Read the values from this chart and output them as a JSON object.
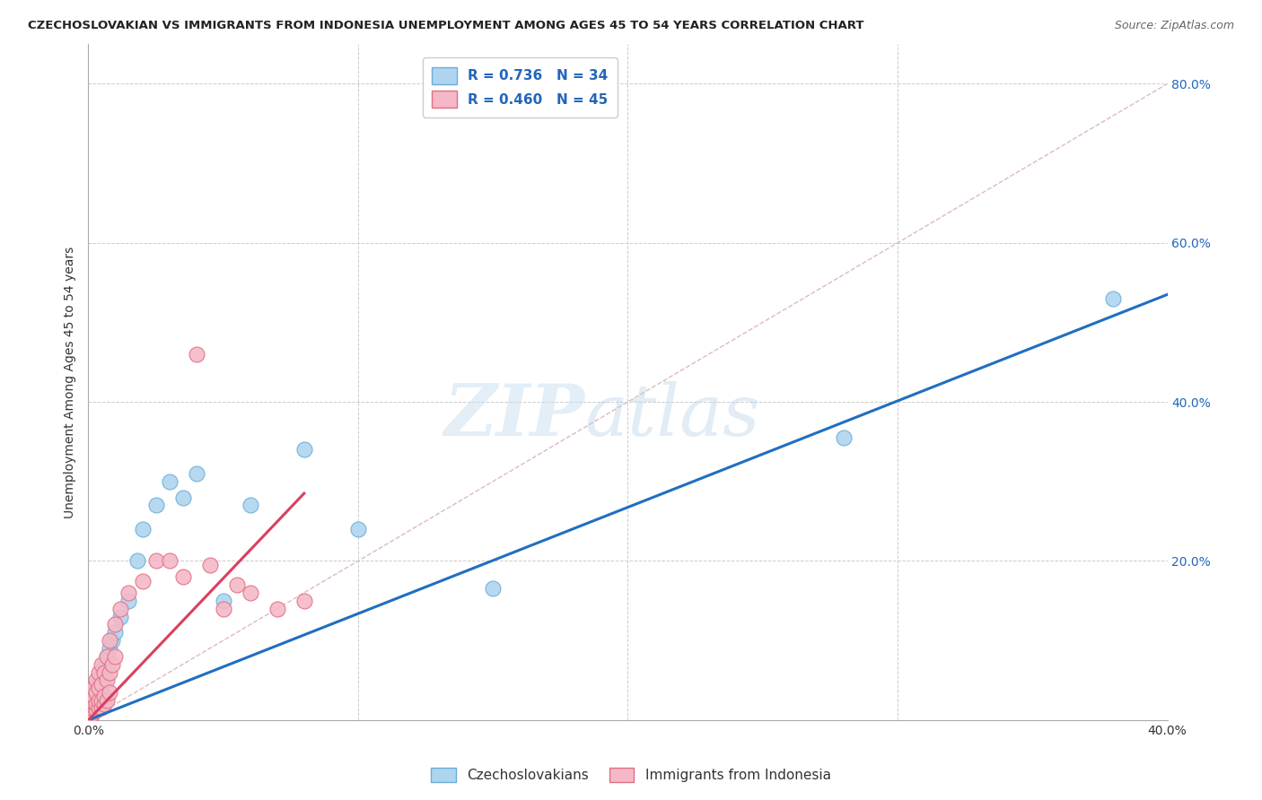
{
  "title": "CZECHOSLOVAKIAN VS IMMIGRANTS FROM INDONESIA UNEMPLOYMENT AMONG AGES 45 TO 54 YEARS CORRELATION CHART",
  "source": "Source: ZipAtlas.com",
  "ylabel": "Unemployment Among Ages 45 to 54 years",
  "xlim": [
    0,
    0.4
  ],
  "ylim": [
    0,
    0.85
  ],
  "xticks": [
    0.0,
    0.1,
    0.2,
    0.3,
    0.4
  ],
  "xticklabels": [
    "0.0%",
    "",
    "",
    "",
    "40.0%"
  ],
  "yticks_right": [
    0.2,
    0.4,
    0.6,
    0.8
  ],
  "yticklabels_right": [
    "20.0%",
    "40.0%",
    "60.0%",
    "80.0%"
  ],
  "series1_label": "Czechoslovakians",
  "series1_color": "#aed4f0",
  "series1_edge": "#6aaed6",
  "series1_R": 0.736,
  "series1_N": 34,
  "series1_line_color": "#1f6fbf",
  "series2_label": "Immigrants from Indonesia",
  "series2_color": "#f4b8c8",
  "series2_edge": "#e07080",
  "series2_R": 0.46,
  "series2_N": 45,
  "series2_line_color": "#d94060",
  "background_color": "#ffffff",
  "grid_color": "#cccccc",
  "watermark": "ZIPatlas",
  "czecho_x": [
    0.001,
    0.001,
    0.001,
    0.002,
    0.002,
    0.002,
    0.003,
    0.003,
    0.003,
    0.004,
    0.004,
    0.005,
    0.005,
    0.006,
    0.006,
    0.007,
    0.008,
    0.009,
    0.01,
    0.012,
    0.015,
    0.018,
    0.02,
    0.025,
    0.03,
    0.035,
    0.04,
    0.05,
    0.06,
    0.08,
    0.1,
    0.15,
    0.28,
    0.38
  ],
  "czecho_y": [
    0.005,
    0.008,
    0.01,
    0.015,
    0.02,
    0.025,
    0.03,
    0.035,
    0.04,
    0.045,
    0.05,
    0.055,
    0.06,
    0.05,
    0.07,
    0.08,
    0.09,
    0.1,
    0.11,
    0.13,
    0.15,
    0.2,
    0.24,
    0.27,
    0.3,
    0.28,
    0.31,
    0.15,
    0.27,
    0.34,
    0.24,
    0.165,
    0.355,
    0.53
  ],
  "indo_x": [
    0.001,
    0.001,
    0.001,
    0.001,
    0.002,
    0.002,
    0.002,
    0.002,
    0.003,
    0.003,
    0.003,
    0.003,
    0.004,
    0.004,
    0.004,
    0.004,
    0.005,
    0.005,
    0.005,
    0.005,
    0.006,
    0.006,
    0.006,
    0.007,
    0.007,
    0.007,
    0.008,
    0.008,
    0.008,
    0.009,
    0.01,
    0.01,
    0.012,
    0.015,
    0.02,
    0.025,
    0.03,
    0.035,
    0.04,
    0.045,
    0.05,
    0.055,
    0.06,
    0.07,
    0.08
  ],
  "indo_y": [
    0.003,
    0.006,
    0.01,
    0.015,
    0.018,
    0.022,
    0.03,
    0.04,
    0.012,
    0.02,
    0.035,
    0.05,
    0.015,
    0.025,
    0.04,
    0.06,
    0.015,
    0.025,
    0.045,
    0.07,
    0.02,
    0.03,
    0.06,
    0.025,
    0.05,
    0.08,
    0.035,
    0.06,
    0.1,
    0.07,
    0.08,
    0.12,
    0.14,
    0.16,
    0.175,
    0.2,
    0.2,
    0.18,
    0.46,
    0.195,
    0.14,
    0.17,
    0.16,
    0.14,
    0.15
  ],
  "czecho_line_x": [
    0.0,
    0.4
  ],
  "czecho_line_y": [
    0.0,
    0.535
  ],
  "indo_line_x": [
    0.0,
    0.08
  ],
  "indo_line_y": [
    0.0,
    0.285
  ]
}
